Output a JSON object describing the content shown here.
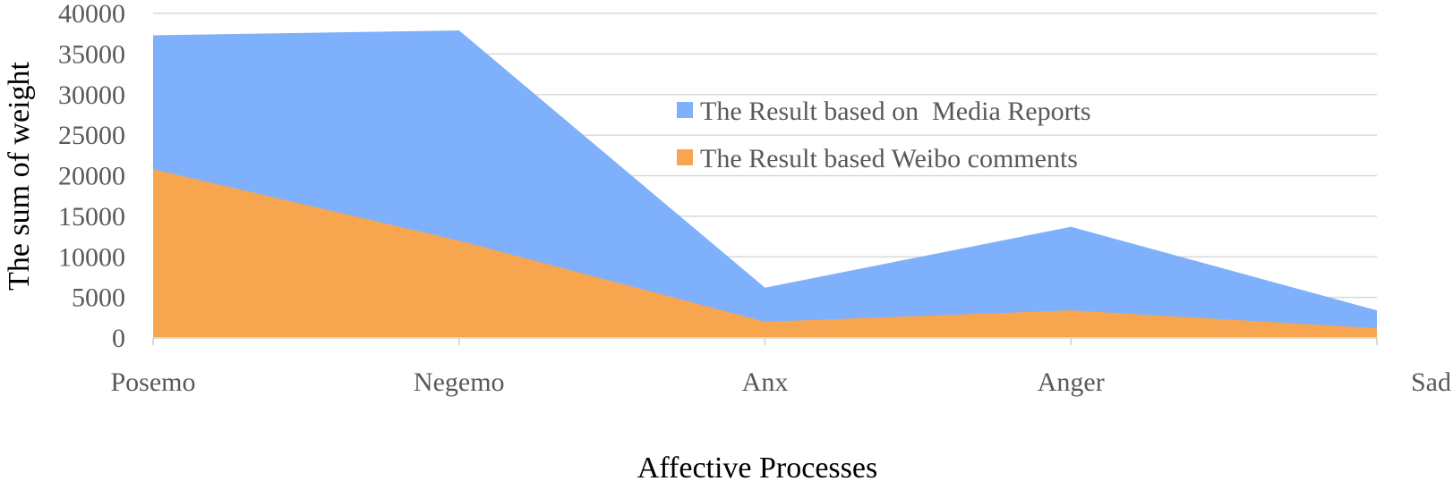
{
  "chart_data": {
    "type": "area",
    "categories": [
      "Posemo",
      "Negemo",
      "Anx",
      "Anger",
      "Sad"
    ],
    "series": [
      {
        "name": "The Result based on  Media Reports",
        "values": [
          37300,
          37900,
          6200,
          13700,
          3400
        ],
        "color": "#7fb0fc"
      },
      {
        "name": "The Result based Weibo comments",
        "values": [
          20800,
          12000,
          2000,
          3400,
          1200
        ],
        "color": "#f8a54f"
      }
    ],
    "title": "",
    "xlabel": "Affective Processes",
    "ylabel": "The sum of weight",
    "ylim": [
      0,
      40000
    ],
    "yticks": [
      0,
      5000,
      10000,
      15000,
      20000,
      25000,
      30000,
      35000,
      40000
    ],
    "grid": true,
    "legend_position": "upper-right-inside",
    "overlap": true
  }
}
